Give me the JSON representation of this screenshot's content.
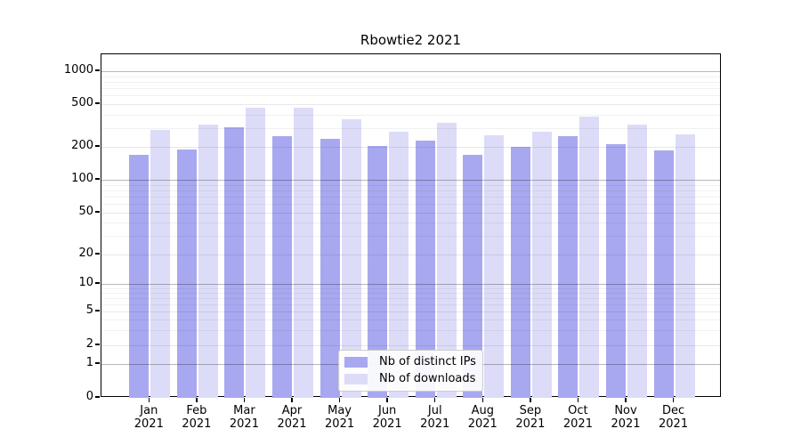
{
  "chart_data": {
    "type": "bar",
    "title": "Rbowtie2 2021",
    "categories": [
      "Jan",
      "Feb",
      "Mar",
      "Apr",
      "May",
      "Jun",
      "Jul",
      "Aug",
      "Sep",
      "Oct",
      "Nov",
      "Dec"
    ],
    "year": "2021",
    "series": [
      {
        "name": "Nb of distinct IPs",
        "color": "#a8a8f0",
        "values": [
          170,
          190,
          305,
          250,
          237,
          202,
          227,
          170,
          200,
          252,
          212,
          185
        ]
      },
      {
        "name": "Nb of downloads",
        "color": "#dcdcf8",
        "values": [
          285,
          322,
          465,
          462,
          363,
          275,
          335,
          255,
          278,
          385,
          320,
          260
        ]
      }
    ],
    "y_ticks": [
      0,
      1,
      2,
      5,
      10,
      20,
      50,
      100,
      200,
      500,
      1000
    ],
    "ylim": [
      0,
      1400
    ],
    "yscale": "log-like",
    "grid": true,
    "legend_position": "lower-center"
  }
}
